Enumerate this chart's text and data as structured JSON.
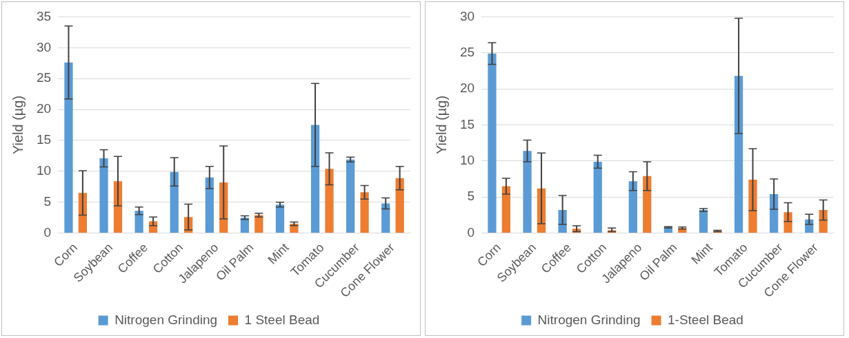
{
  "chart_data": [
    {
      "type": "bar",
      "ylabel": "Yield (µg)",
      "categories": [
        "Corn",
        "Soybean",
        "Coffee",
        "Cotton",
        "Jalapeno",
        "Oil Palm",
        "Mint",
        "Tomato",
        "Cucumber",
        "Cone Flower"
      ],
      "series": [
        {
          "name": "Nitrogen Grinding",
          "color": "#5b9bd5",
          "values": [
            27.6,
            12.1,
            3.6,
            9.9,
            9.0,
            2.5,
            4.6,
            17.5,
            11.9,
            4.8
          ],
          "errors": [
            5.9,
            1.4,
            0.6,
            2.3,
            1.8,
            0.3,
            0.4,
            6.7,
            0.4,
            0.9
          ]
        },
        {
          "name": "1 Steel Bead",
          "color": "#ed7d31",
          "values": [
            6.5,
            8.4,
            1.9,
            2.6,
            8.2,
            2.9,
            1.5,
            10.4,
            6.6,
            8.9
          ],
          "errors": [
            3.6,
            4.0,
            0.7,
            2.1,
            5.9,
            0.3,
            0.3,
            2.6,
            1.1,
            1.9
          ]
        }
      ],
      "ylim": [
        0,
        35
      ],
      "yticks": [
        0,
        5,
        10,
        15,
        20,
        25,
        30,
        35
      ],
      "grid": "y",
      "legend": "bottom"
    },
    {
      "type": "bar",
      "ylabel": "Yield (µg)",
      "categories": [
        "Corn",
        "Soybean",
        "Coffee",
        "Cotton",
        "Jalapeno",
        "Oil Palm",
        "Mint",
        "Tomato",
        "Cucumber",
        "Cone Flower"
      ],
      "series": [
        {
          "name": "Nitrogen Grinding",
          "color": "#5b9bd5",
          "values": [
            24.9,
            11.4,
            3.2,
            9.9,
            7.2,
            0.8,
            3.2,
            21.8,
            5.4,
            1.9
          ],
          "errors": [
            1.5,
            1.5,
            2.0,
            0.9,
            1.3,
            0.1,
            0.2,
            8.0,
            2.1,
            0.7
          ]
        },
        {
          "name": "1-Steel Bead",
          "color": "#ed7d31",
          "values": [
            6.5,
            6.2,
            0.6,
            0.4,
            7.9,
            0.7,
            0.3,
            7.4,
            2.9,
            3.2
          ],
          "errors": [
            1.1,
            4.9,
            0.4,
            [
              0.2,
              0.7
            ],
            2.0,
            0.15,
            0.1,
            4.3,
            1.3,
            1.4
          ]
        }
      ],
      "ylim": [
        0,
        30
      ],
      "yticks": [
        0,
        5,
        10,
        15,
        20,
        25,
        30
      ],
      "grid": "y",
      "legend": "bottom"
    }
  ]
}
